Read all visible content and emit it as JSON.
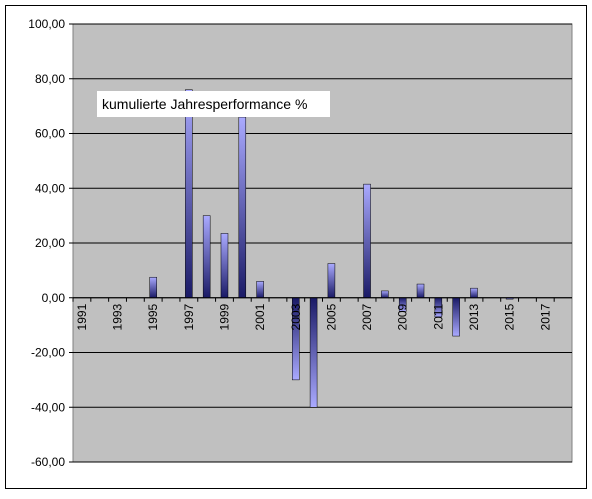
{
  "chart_data": {
    "type": "bar",
    "annotation": "kumulierte Jahresperformance %",
    "categories": [
      "1991",
      null,
      "1993",
      null,
      "1995",
      null,
      "1997",
      null,
      "1999",
      null,
      "2001",
      null,
      "2003",
      null,
      "2005",
      null,
      "2007",
      null,
      "2009",
      null,
      "2011",
      null,
      "2013",
      null,
      "2015",
      null,
      "2017",
      null
    ],
    "values": [
      null,
      null,
      null,
      null,
      7.5,
      null,
      76,
      30,
      23.5,
      66,
      6,
      null,
      -30,
      -40,
      12.5,
      null,
      41.5,
      2.5,
      -5,
      5,
      -7,
      -14,
      3.5,
      null,
      -0.5,
      null,
      null,
      null
    ],
    "color": "#9999ff",
    "ylim": [
      -60,
      100
    ],
    "yticks": [
      {
        "value": -60,
        "label": "-60,00"
      },
      {
        "value": -40,
        "label": "-40,00"
      },
      {
        "value": -20,
        "label": "-20,00"
      },
      {
        "value": 0,
        "label": "0,00"
      },
      {
        "value": 20,
        "label": "20,00"
      },
      {
        "value": 40,
        "label": "40,00"
      },
      {
        "value": 60,
        "label": "60,00"
      },
      {
        "value": 80,
        "label": "80,00"
      },
      {
        "value": 100,
        "label": "100,00"
      }
    ],
    "grid": true
  }
}
